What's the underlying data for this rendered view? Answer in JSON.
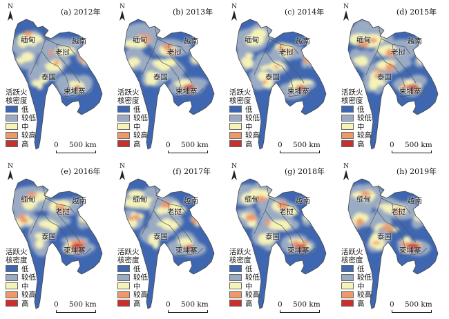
{
  "panels": [
    {
      "title": "(a) 2012年",
      "hot": 0.15,
      "seed": 3
    },
    {
      "title": "(b) 2013年",
      "hot": 0.55,
      "seed": 7
    },
    {
      "title": "(c) 2014年",
      "hot": 0.35,
      "seed": 11
    },
    {
      "title": "(d) 2015年",
      "hot": 0.6,
      "seed": 5
    },
    {
      "title": "(e) 2016年",
      "hot": 0.7,
      "seed": 9
    },
    {
      "title": "(f) 2017年",
      "hot": 0.3,
      "seed": 13
    },
    {
      "title": "(g) 2018年",
      "hot": 0.45,
      "seed": 17
    },
    {
      "title": "(h) 2019年",
      "hot": 0.65,
      "seed": 21
    }
  ],
  "countries": {
    "myanmar": "缅甸",
    "laos": "老挝",
    "vietnam": "越南",
    "thailand": "泰国",
    "cambodia": "柬埔寨"
  },
  "north_label": "N",
  "legend": {
    "title_line1": "活跃火",
    "title_line2": "核密度",
    "classes": [
      {
        "label": "低",
        "color": "#3f66b0"
      },
      {
        "label": "较低",
        "color": "#9aabc4"
      },
      {
        "label": "中",
        "color": "#f6f3b7"
      },
      {
        "label": "较高",
        "color": "#ec9a6a"
      },
      {
        "label": "高",
        "color": "#c8302b"
      }
    ]
  },
  "scale": {
    "zero": "0",
    "distance": "500 km"
  }
}
